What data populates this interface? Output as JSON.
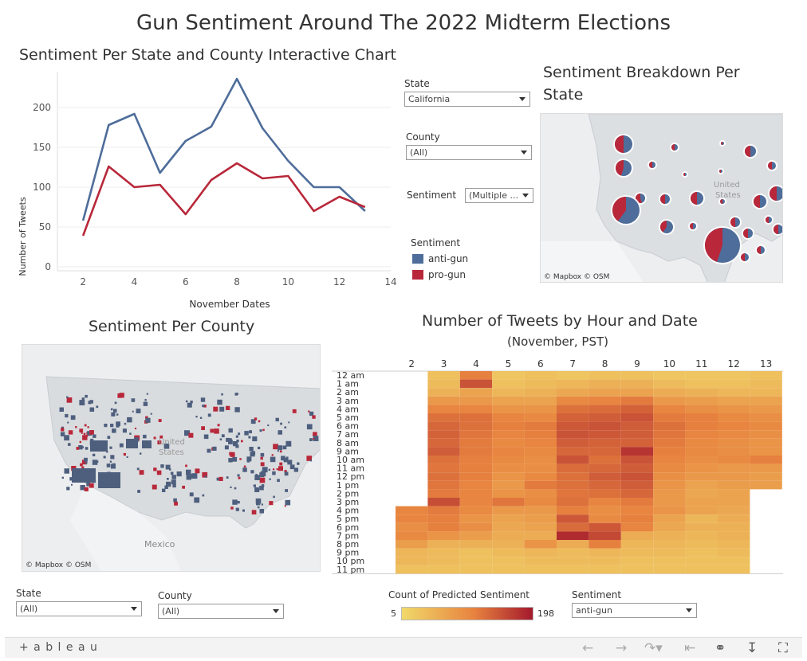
{
  "title": "Gun Sentiment Around The 2022 Midterm Elections",
  "line_chart": {
    "title": "Sentiment Per State and County Interactive Chart",
    "xlabel": "November Dates",
    "ylabel": "Number of Tweets",
    "x_ticks": [
      "2",
      "4",
      "6",
      "8",
      "10",
      "12",
      "14"
    ],
    "y_ticks": [
      "0",
      "50",
      "100",
      "150",
      "200"
    ]
  },
  "chart_data": {
    "type": "line",
    "title": "Sentiment Per State and County Interactive Chart",
    "xlabel": "November Dates",
    "ylabel": "Number of Tweets",
    "xlim": [
      1,
      14
    ],
    "ylim": [
      -5,
      245
    ],
    "grid": true,
    "legend": "right",
    "x": [
      2,
      3,
      4,
      5,
      6,
      7,
      8,
      9,
      10,
      11,
      12,
      13
    ],
    "series": [
      {
        "name": "anti-gun",
        "color": "#4e6d9a",
        "values": [
          58,
          178,
          192,
          118,
          158,
          176,
          236,
          174,
          133,
          100,
          100,
          70
        ]
      },
      {
        "name": "pro-gun",
        "color": "#b8283a",
        "values": [
          39,
          126,
          100,
          103,
          66,
          109,
          130,
          111,
          114,
          70,
          88,
          75
        ]
      }
    ]
  },
  "filters": {
    "state_label": "State",
    "state_value": "California",
    "county_label": "County",
    "county_value": "(All)",
    "sentiment_label": "Sentiment",
    "sentiment_value": "(Multiple ..."
  },
  "legend": {
    "title": "Sentiment",
    "items": [
      {
        "label": "anti-gun",
        "color": "#4e6d9a"
      },
      {
        "label": "pro-gun",
        "color": "#b8283a"
      }
    ]
  },
  "breakdown_map": {
    "title_line1": "Sentiment Breakdown Per",
    "title_line2": "State",
    "country_label_1": "United",
    "country_label_2": "States",
    "attribution": "© Mapbox  © OSM"
  },
  "county_map": {
    "title": "Sentiment Per County",
    "country_label_1": "United",
    "country_label_2": "States",
    "mexico_label": "Mexico",
    "attribution": "© Mapbox  © OSM",
    "state_label": "State",
    "state_value": "(All)",
    "county_label": "County",
    "county_value": "(All)"
  },
  "heatmap": {
    "title": "Number of Tweets by Hour and Date",
    "subtitle": "(November, PST)",
    "dates": [
      "2",
      "3",
      "4",
      "5",
      "6",
      "7",
      "8",
      "9",
      "10",
      "11",
      "12",
      "13"
    ],
    "hours": [
      "12 am",
      "1 am",
      "2 am",
      "3 am",
      "4 am",
      "5 am",
      "6 am",
      "7 am",
      "8 am",
      "9 am",
      "10 am",
      "11 am",
      "12 pm",
      "1 pm",
      "2 pm",
      "3 pm",
      "4 pm",
      "5 pm",
      "6 pm",
      "7 pm",
      "8 pm",
      "9 pm",
      "10 pm",
      "11 pm"
    ],
    "legend_title": "Count of Predicted Sentiment",
    "legend_min": "5",
    "legend_max": "198",
    "sentiment_label": "Sentiment",
    "sentiment_value": "anti-gun",
    "values": [
      [
        null,
        30,
        95,
        25,
        30,
        25,
        30,
        30,
        25,
        25,
        25,
        30
      ],
      [
        null,
        35,
        140,
        30,
        35,
        40,
        45,
        45,
        35,
        30,
        30,
        35
      ],
      [
        null,
        45,
        60,
        40,
        45,
        55,
        60,
        60,
        50,
        45,
        40,
        40
      ],
      [
        null,
        70,
        70,
        60,
        60,
        85,
        90,
        100,
        70,
        65,
        60,
        60
      ],
      [
        null,
        90,
        90,
        75,
        75,
        110,
        115,
        125,
        90,
        80,
        75,
        70
      ],
      [
        null,
        110,
        110,
        90,
        85,
        125,
        130,
        140,
        100,
        95,
        85,
        80
      ],
      [
        null,
        120,
        110,
        95,
        100,
        135,
        140,
        130,
        110,
        95,
        90,
        85
      ],
      [
        null,
        125,
        105,
        90,
        95,
        140,
        135,
        130,
        105,
        90,
        85,
        80
      ],
      [
        null,
        120,
        100,
        85,
        90,
        130,
        125,
        125,
        100,
        85,
        80,
        75
      ],
      [
        null,
        130,
        100,
        90,
        85,
        120,
        120,
        170,
        95,
        85,
        80,
        75
      ],
      [
        null,
        110,
        95,
        85,
        80,
        140,
        110,
        140,
        90,
        80,
        85,
        95
      ],
      [
        null,
        105,
        95,
        80,
        80,
        115,
        120,
        130,
        85,
        75,
        70,
        70
      ],
      [
        null,
        110,
        95,
        75,
        85,
        110,
        130,
        140,
        80,
        70,
        70,
        65
      ],
      [
        null,
        105,
        90,
        70,
        100,
        110,
        120,
        130,
        75,
        60,
        65,
        65
      ],
      [
        null,
        100,
        90,
        75,
        80,
        105,
        110,
        120,
        70,
        55,
        60,
        null
      ],
      [
        null,
        145,
        90,
        105,
        85,
        110,
        90,
        100,
        70,
        60,
        60,
        null
      ],
      [
        90,
        100,
        85,
        70,
        70,
        95,
        80,
        90,
        75,
        60,
        55,
        null
      ],
      [
        90,
        95,
        75,
        60,
        65,
        135,
        85,
        95,
        60,
        40,
        50,
        null
      ],
      [
        80,
        95,
        80,
        55,
        60,
        115,
        135,
        90,
        55,
        45,
        45,
        null
      ],
      [
        85,
        75,
        65,
        50,
        50,
        180,
        150,
        50,
        45,
        40,
        45,
        null
      ],
      [
        65,
        45,
        45,
        45,
        75,
        50,
        95,
        40,
        40,
        35,
        40,
        null
      ],
      [
        40,
        35,
        30,
        35,
        40,
        35,
        40,
        35,
        35,
        30,
        35,
        null
      ],
      [
        40,
        35,
        30,
        30,
        35,
        35,
        35,
        30,
        30,
        30,
        30,
        null
      ],
      [
        30,
        30,
        30,
        30,
        30,
        30,
        30,
        30,
        30,
        30,
        30,
        null
      ]
    ]
  },
  "colors": {
    "anti_gun": "#4e6d9a",
    "pro_gun": "#b8283a",
    "heat_low": "#f0d96a",
    "heat_mid": "#e8833f",
    "heat_high": "#a4192d"
  },
  "toolbar": {
    "brand": "+ a b l e a u",
    "icons": [
      "undo-icon",
      "redo-icon",
      "revert-icon",
      "reset-icon",
      "share-icon",
      "download-icon",
      "fullscreen-icon"
    ]
  }
}
